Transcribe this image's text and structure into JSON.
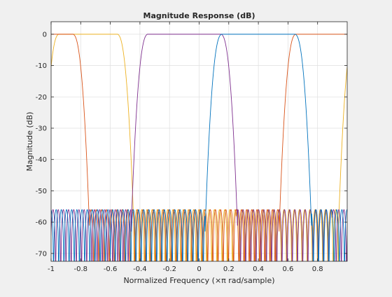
{
  "chart_data": {
    "type": "line",
    "title": "Magnitude Response (dB)",
    "xlabel": "Normalized Frequency (×π rad/sample)",
    "ylabel": "Magnitude (dB)",
    "xlim": [
      -1,
      1
    ],
    "ylim": [
      -72.5,
      4
    ],
    "xticks": [
      -1,
      -0.8,
      -0.6,
      -0.4,
      -0.2,
      0,
      0.2,
      0.4,
      0.6,
      0.8
    ],
    "xtick_labels": [
      "-1",
      "-0.8",
      "-0.6",
      "-0.4",
      "-0.2",
      "0",
      "0.2",
      "0.4",
      "0.6",
      "0.8"
    ],
    "yticks": [
      0,
      -10,
      -20,
      -30,
      -40,
      -50,
      -60,
      -70
    ],
    "ytick_labels": [
      "0",
      "-10",
      "-20",
      "-30",
      "-40",
      "-50",
      "-60",
      "-70"
    ],
    "grid": true,
    "stopband_level_db": -56,
    "series": [
      {
        "color": "#edb120",
        "passband": [
          -0.95,
          -0.55
        ],
        "transition": 0.11
      },
      {
        "color": "#d95319",
        "passband": [
          0.65,
          -0.85
        ],
        "transition": 0.11,
        "wraps": true
      },
      {
        "color": "#7e2f8e",
        "passband": [
          -0.35,
          0.15
        ],
        "transition": 0.11
      },
      {
        "color": "#0072bd",
        "passband": [
          0.15,
          0.65
        ],
        "transition": 0.11
      }
    ]
  }
}
